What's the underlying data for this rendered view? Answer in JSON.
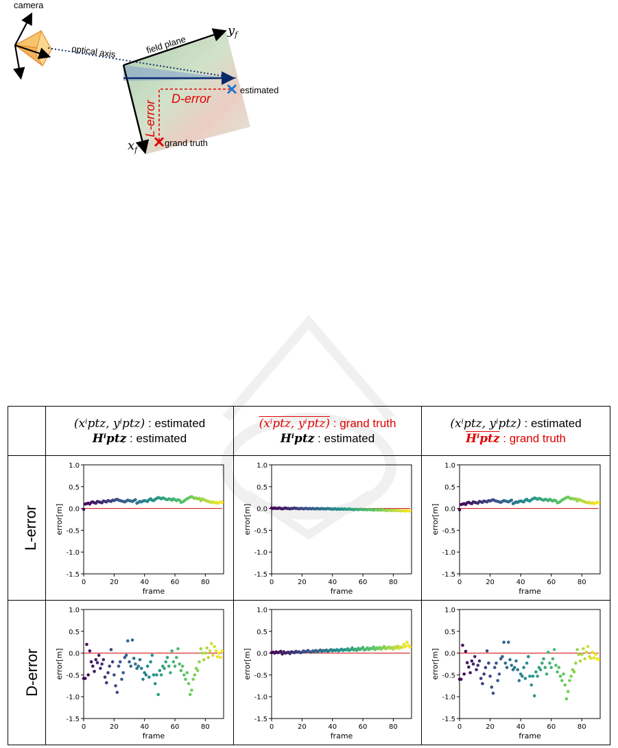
{
  "diagram": {
    "camera_label": "camera",
    "optical_axis_label": "optical axis",
    "field_plane_label": "field plane",
    "y_axis_label": "y",
    "y_axis_sub": "f",
    "x_axis_label": "x",
    "x_axis_sub": "f",
    "l_error_label": "L-error",
    "d_error_label": "D-error",
    "estimated_label": "estimated",
    "grand_truth_label": "grand truth",
    "colors": {
      "error": "#e00000",
      "estimated": "#1f77d4",
      "axis": "#0a2a6a"
    }
  },
  "table": {
    "columns": [
      {
        "line1_math": "(xⁱptz, yⁱptz)",
        "line1_text": " : estimated",
        "line2_math": "Hⁱptz",
        "line2_text": " : estimated",
        "line1_red": false,
        "line2_red": false
      },
      {
        "line1_math": "(xⁱptz, yⁱptz)",
        "line1_text": " : grand truth",
        "line2_math": "Hⁱptz",
        "line2_text": " : estimated",
        "line1_red": true,
        "line2_red": false
      },
      {
        "line1_math": "(xⁱptz, yⁱptz)",
        "line1_text": " : estimated",
        "line2_math": "Hⁱptz",
        "line2_text": " : grand truth",
        "line1_red": false,
        "line2_red": true
      }
    ],
    "rows": [
      "L-error",
      "D-error"
    ]
  },
  "chart_data": [
    {
      "type": "scatter",
      "id": "L-est-est",
      "xlabel": "frame",
      "ylabel": "error[m]",
      "xlim": [
        0,
        92
      ],
      "ylim": [
        -1.5,
        1.0
      ],
      "xticks": [
        0,
        20,
        40,
        60,
        80
      ],
      "yticks": [
        1.0,
        0.5,
        0.0,
        -0.5,
        -1.0,
        -1.5
      ],
      "reference_line": 0.0,
      "colormap": "viridis",
      "y": [
        -0.02,
        0.1,
        0.11,
        0.12,
        0.1,
        0.14,
        0.15,
        0.13,
        0.12,
        0.16,
        0.15,
        0.14,
        0.13,
        0.17,
        0.16,
        0.15,
        0.18,
        0.17,
        0.16,
        0.19,
        0.18,
        0.2,
        0.21,
        0.19,
        0.18,
        0.17,
        0.16,
        0.15,
        0.17,
        0.19,
        0.18,
        0.17,
        0.16,
        0.18,
        0.2,
        0.12,
        0.14,
        0.16,
        0.15,
        0.17,
        0.18,
        0.17,
        0.16,
        0.2,
        0.22,
        0.19,
        0.18,
        0.21,
        0.23,
        0.25,
        0.24,
        0.22,
        0.24,
        0.23,
        0.21,
        0.2,
        0.22,
        0.21,
        0.19,
        0.22,
        0.2,
        0.18,
        0.2,
        0.19,
        0.14,
        0.15,
        0.17,
        0.2,
        0.22,
        0.24,
        0.26,
        0.27,
        0.25,
        0.23,
        0.24,
        0.22,
        0.23,
        0.18,
        0.22,
        0.2,
        0.19,
        0.17,
        0.16,
        0.15,
        0.14,
        0.15,
        0.13,
        0.14,
        0.12,
        0.13,
        0.15,
        0.14
      ]
    },
    {
      "type": "scatter",
      "id": "L-gt-est",
      "xlabel": "frame",
      "ylabel": "error[m]",
      "xlim": [
        0,
        92
      ],
      "ylim": [
        -1.5,
        1.0
      ],
      "xticks": [
        0,
        20,
        40,
        60,
        80
      ],
      "yticks": [
        1.0,
        0.5,
        0.0,
        -0.5,
        -1.0,
        -1.5
      ],
      "reference_line": 0.0,
      "colormap": "viridis",
      "y": [
        0.01,
        0.0,
        0.01,
        0.0,
        0.0,
        0.01,
        0.0,
        -0.01,
        0.0,
        0.01,
        0.0,
        0.0,
        -0.01,
        0.0,
        0.0,
        0.01,
        0.0,
        0.0,
        -0.01,
        0.0,
        0.0,
        -0.01,
        0.0,
        0.0,
        -0.01,
        0.0,
        -0.01,
        0.0,
        -0.01,
        -0.01,
        0.0,
        -0.01,
        -0.01,
        0.0,
        -0.01,
        -0.01,
        -0.01,
        0.0,
        -0.01,
        -0.01,
        -0.02,
        -0.01,
        -0.01,
        -0.02,
        -0.01,
        -0.02,
        -0.01,
        -0.02,
        -0.01,
        -0.02,
        -0.02,
        -0.01,
        -0.02,
        -0.02,
        -0.03,
        -0.02,
        -0.02,
        -0.03,
        -0.02,
        -0.02,
        -0.03,
        -0.02,
        -0.03,
        -0.03,
        -0.02,
        -0.03,
        -0.03,
        -0.04,
        -0.03,
        -0.03,
        -0.04,
        -0.03,
        -0.04,
        -0.03,
        -0.04,
        -0.04,
        -0.05,
        -0.04,
        -0.04,
        -0.05,
        -0.04,
        -0.05,
        -0.04,
        -0.05,
        -0.05,
        -0.06,
        -0.05,
        -0.05,
        -0.06,
        -0.05,
        -0.06,
        -0.05
      ]
    },
    {
      "type": "scatter",
      "id": "L-est-gt",
      "xlabel": "frame",
      "ylabel": "error[m]",
      "xlim": [
        0,
        92
      ],
      "ylim": [
        -1.5,
        1.0
      ],
      "xticks": [
        0,
        20,
        40,
        60,
        80
      ],
      "yticks": [
        1.0,
        0.5,
        0.0,
        -0.5,
        -1.0,
        -1.5
      ],
      "reference_line": 0.0,
      "colormap": "viridis",
      "y": [
        -0.03,
        0.09,
        0.1,
        0.11,
        0.09,
        0.13,
        0.14,
        0.12,
        0.11,
        0.15,
        0.14,
        0.13,
        0.12,
        0.16,
        0.15,
        0.14,
        0.17,
        0.16,
        0.15,
        0.18,
        0.17,
        0.19,
        0.2,
        0.18,
        0.17,
        0.16,
        0.15,
        0.14,
        0.16,
        0.18,
        0.17,
        0.16,
        0.15,
        0.17,
        0.19,
        0.11,
        0.13,
        0.15,
        0.14,
        0.16,
        0.17,
        0.16,
        0.15,
        0.19,
        0.21,
        0.18,
        0.17,
        0.2,
        0.22,
        0.24,
        0.23,
        0.21,
        0.23,
        0.22,
        0.2,
        0.19,
        0.21,
        0.2,
        0.18,
        0.21,
        0.19,
        0.17,
        0.19,
        0.18,
        0.13,
        0.14,
        0.16,
        0.19,
        0.21,
        0.23,
        0.25,
        0.26,
        0.24,
        0.22,
        0.23,
        0.21,
        0.22,
        0.17,
        0.21,
        0.19,
        0.18,
        0.16,
        0.15,
        0.14,
        0.13,
        0.14,
        0.12,
        0.13,
        0.11,
        0.12,
        0.14,
        0.13
      ]
    },
    {
      "type": "scatter",
      "id": "D-est-est",
      "xlabel": "frame",
      "ylabel": "error[m]",
      "xlim": [
        0,
        92
      ],
      "ylim": [
        -1.5,
        1.0
      ],
      "xticks": [
        0,
        20,
        40,
        60,
        80
      ],
      "yticks": [
        1.0,
        0.5,
        0.0,
        -0.5,
        -1.0,
        -1.5
      ],
      "reference_line": 0.0,
      "colormap": "viridis",
      "y": [
        -0.58,
        -0.58,
        0.2,
        -0.5,
        0.05,
        -0.2,
        -0.3,
        -0.42,
        -0.15,
        -0.22,
        -0.05,
        -0.35,
        -0.25,
        -0.15,
        -0.55,
        -0.68,
        -0.45,
        -0.3,
        0.08,
        -0.2,
        -0.5,
        -0.75,
        -0.9,
        -0.3,
        -0.2,
        -0.6,
        -0.45,
        -0.1,
        -0.05,
        0.28,
        -0.2,
        -0.3,
        0.3,
        -0.12,
        -0.25,
        -0.35,
        -0.3,
        -0.15,
        -0.35,
        -0.6,
        -0.45,
        -0.5,
        -0.3,
        -0.55,
        -0.2,
        -0.05,
        -0.5,
        -0.7,
        -0.5,
        -0.95,
        -0.4,
        -0.5,
        -0.3,
        -0.35,
        -0.2,
        -0.1,
        -0.3,
        -0.45,
        0.05,
        -0.2,
        -0.3,
        -0.1,
        0.1,
        -0.25,
        -0.4,
        -0.3,
        -0.5,
        -0.6,
        -0.45,
        -0.7,
        -0.95,
        -0.85,
        -0.6,
        -0.5,
        -0.35,
        -0.4,
        -0.2,
        0.1,
        0.0,
        -0.15,
        0.0,
        0.12,
        -0.1,
        0.05,
        0.22,
        -0.05,
        0.15,
        0.05,
        -0.08,
        0.0,
        -0.1,
        0.05
      ]
    },
    {
      "type": "scatter",
      "id": "D-gt-est",
      "xlabel": "frame",
      "ylabel": "error[m]",
      "xlim": [
        0,
        92
      ],
      "ylim": [
        -1.5,
        1.0
      ],
      "xticks": [
        0,
        20,
        40,
        60,
        80
      ],
      "yticks": [
        1.0,
        0.5,
        0.0,
        -0.5,
        -1.0,
        -1.5
      ],
      "reference_line": 0.0,
      "colormap": "viridis",
      "y": [
        0.01,
        0.02,
        0.0,
        0.03,
        0.01,
        0.02,
        0.04,
        -0.02,
        0.03,
        0.0,
        0.01,
        0.02,
        -0.01,
        0.03,
        0.02,
        0.01,
        0.04,
        0.02,
        0.03,
        0.01,
        0.02,
        0.05,
        0.03,
        0.04,
        0.06,
        0.03,
        0.02,
        0.05,
        0.04,
        0.06,
        0.03,
        0.05,
        0.07,
        0.04,
        0.06,
        0.05,
        0.07,
        0.04,
        0.06,
        0.08,
        0.05,
        0.07,
        0.06,
        0.08,
        0.05,
        0.07,
        0.09,
        0.06,
        0.08,
        0.07,
        0.1,
        0.06,
        0.08,
        0.12,
        0.07,
        0.09,
        0.06,
        0.11,
        0.08,
        0.1,
        0.13,
        0.07,
        0.09,
        0.12,
        0.08,
        0.11,
        0.1,
        0.14,
        0.08,
        0.12,
        0.1,
        0.13,
        0.09,
        0.12,
        0.15,
        0.1,
        0.12,
        0.14,
        0.11,
        0.13,
        0.09,
        0.14,
        0.12,
        0.16,
        0.11,
        0.14,
        0.13,
        0.2,
        0.15,
        0.25,
        0.18,
        0.14
      ]
    },
    {
      "type": "scatter",
      "id": "D-est-gt",
      "xlabel": "frame",
      "ylabel": "error[m]",
      "xlim": [
        0,
        92
      ],
      "ylim": [
        -1.5,
        1.0
      ],
      "xticks": [
        0,
        20,
        40,
        60,
        80
      ],
      "yticks": [
        1.0,
        0.5,
        0.0,
        -0.5,
        -1.0,
        -1.5
      ],
      "reference_line": 0.0,
      "colormap": "viridis",
      "y": [
        -0.6,
        -0.6,
        0.18,
        -0.48,
        0.04,
        -0.22,
        -0.32,
        -0.45,
        -0.18,
        -0.25,
        -0.08,
        -0.38,
        -0.28,
        -0.18,
        -0.58,
        -0.7,
        -0.48,
        -0.33,
        0.05,
        -0.23,
        -0.53,
        -0.78,
        -0.92,
        -0.33,
        -0.23,
        -0.63,
        -0.48,
        -0.13,
        -0.08,
        0.25,
        -0.23,
        -0.33,
        0.25,
        -0.15,
        -0.28,
        -0.38,
        -0.33,
        -0.18,
        -0.38,
        -0.63,
        -0.48,
        -0.53,
        -0.33,
        -0.58,
        -0.23,
        -0.08,
        -0.53,
        -0.73,
        -0.53,
        -0.98,
        -0.43,
        -0.53,
        -0.33,
        -0.38,
        -0.23,
        -0.13,
        -0.33,
        -0.48,
        0.02,
        -0.23,
        -0.33,
        -0.13,
        0.08,
        -0.28,
        -0.43,
        -0.33,
        -0.53,
        -0.63,
        -0.48,
        -0.73,
        -1.05,
        -0.88,
        -0.63,
        -0.53,
        -0.38,
        -0.43,
        -0.23,
        0.08,
        -0.03,
        -0.18,
        -0.03,
        0.1,
        -0.13,
        0.02,
        0.15,
        -0.08,
        -0.12,
        0.02,
        -0.11,
        -0.03,
        -0.13,
        -0.15
      ]
    }
  ]
}
